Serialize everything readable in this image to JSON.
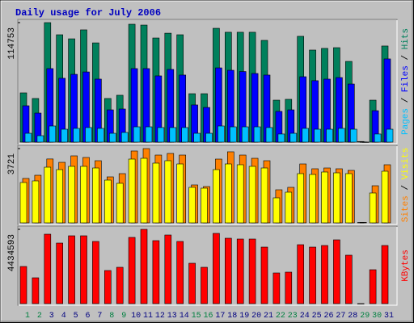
{
  "title": "Daily usage for July 2006",
  "legend_separator": " / ",
  "chart_data": [
    {
      "type": "bar",
      "categories": [
        "1",
        "2",
        "3",
        "4",
        "5",
        "6",
        "7",
        "8",
        "9",
        "10",
        "11",
        "12",
        "13",
        "14",
        "15",
        "16",
        "17",
        "18",
        "19",
        "20",
        "21",
        "22",
        "23",
        "24",
        "25",
        "26",
        "27",
        "28",
        "29",
        "30",
        "31"
      ],
      "category_label_colors": [
        "#008040",
        "#008040",
        "#000080",
        "#000080",
        "#000080",
        "#000080",
        "#000080",
        "#008040",
        "#008040",
        "#000080",
        "#000080",
        "#000080",
        "#000080",
        "#000080",
        "#008040",
        "#008040",
        "#000080",
        "#000080",
        "#000080",
        "#000080",
        "#000080",
        "#008040",
        "#008040",
        "#000080",
        "#000080",
        "#000080",
        "#000080",
        "#000080",
        "#008040",
        "#008040",
        "#000080"
      ],
      "ylim": [
        0,
        114753
      ],
      "yticks": [
        114753
      ],
      "series": [
        {
          "name": "Pages",
          "color": "#00C0FF",
          "values": [
            8500,
            6200,
            15500,
            12400,
            13200,
            14000,
            13200,
            8500,
            9300,
            14700,
            14700,
            14000,
            14000,
            14000,
            8500,
            8500,
            15500,
            14700,
            14700,
            14700,
            14000,
            7800,
            8500,
            13200,
            12400,
            12400,
            13200,
            12400,
            100,
            7800,
            12400
          ]
        },
        {
          "name": "Files",
          "color": "#0000FF",
          "values": [
            34900,
            27900,
            70600,
            61300,
            65100,
            67400,
            60500,
            31000,
            31800,
            70600,
            70600,
            63600,
            69800,
            64400,
            35700,
            33300,
            71300,
            69000,
            67800,
            65900,
            64400,
            29500,
            31000,
            62800,
            59000,
            60500,
            62000,
            55800,
            200,
            30200,
            79900
          ]
        },
        {
          "name": "Hits",
          "color": "#00805C",
          "values": [
            47300,
            41900,
            114753,
            103100,
            99200,
            107800,
            95300,
            41900,
            45000,
            113200,
            112400,
            100000,
            104600,
            103100,
            46500,
            46500,
            109300,
            105500,
            105500,
            105500,
            97700,
            40300,
            41100,
            101600,
            88400,
            90000,
            90700,
            77500,
            600,
            40300,
            92300
          ]
        }
      ]
    },
    {
      "type": "bar",
      "ylim": [
        0,
        3721
      ],
      "yticks": [
        3721
      ],
      "series": [
        {
          "name": "Sites",
          "color": "#FF8000",
          "values": [
            2225,
            2386,
            3200,
            3033,
            3357,
            3276,
            3114,
            2305,
            2467,
            3600,
            3721,
            3397,
            3478,
            3397,
            1901,
            1820,
            3195,
            3560,
            3397,
            3235,
            3114,
            1658,
            1780,
            2952,
            2710,
            2750,
            2710,
            2629,
            25,
            1860,
            2912
          ]
        },
        {
          "name": "Visits",
          "color": "#FFFF00",
          "values": [
            2022,
            2103,
            2790,
            2668,
            2831,
            2831,
            2750,
            2143,
            1982,
            3195,
            3235,
            2993,
            3114,
            2952,
            1780,
            1739,
            2668,
            2952,
            2912,
            2831,
            2750,
            1254,
            1537,
            2467,
            2426,
            2548,
            2507,
            2467,
            20,
            1497,
            2588
          ]
        }
      ]
    },
    {
      "type": "bar",
      "ylim": [
        0,
        4434593
      ],
      "yticks": [
        4434593
      ],
      "series": [
        {
          "name": "KBytes",
          "color": "#FF0000",
          "values": [
            2217000,
            1542000,
            4145000,
            3615000,
            4049000,
            4049000,
            3712000,
            1976000,
            2169000,
            3953000,
            4434593,
            3760000,
            4097000,
            3712000,
            2410000,
            2169000,
            4193000,
            3904000,
            3856000,
            3856000,
            3374000,
            1831000,
            1880000,
            3518000,
            3374000,
            3470000,
            3808000,
            2892000,
            5000,
            2024000,
            3470000
          ]
        }
      ]
    }
  ]
}
